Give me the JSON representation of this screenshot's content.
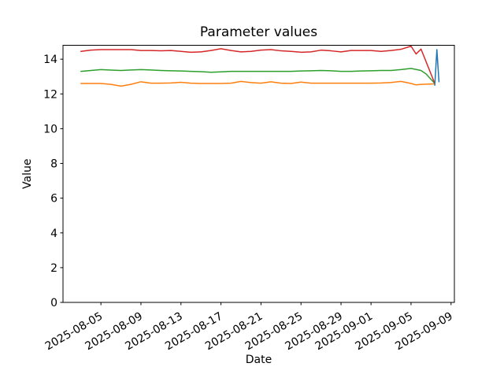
{
  "chart_data": {
    "type": "line",
    "title": "Parameter values",
    "xlabel": "Date",
    "ylabel": "Value",
    "grid": false,
    "legend": "none",
    "background_color": "#ffffff",
    "spine_color": "#000000",
    "ylim": [
      0,
      14.8
    ],
    "y_ticks": [
      0,
      2,
      4,
      6,
      8,
      10,
      12,
      14
    ],
    "xlim": [
      "2025-08-01T05:00",
      "2025-09-09T08:00"
    ],
    "x_tick_labels": [
      "2025-08-05",
      "2025-08-09",
      "2025-08-13",
      "2025-08-17",
      "2025-08-21",
      "2025-08-25",
      "2025-08-29",
      "2025-09-01",
      "2025-09-05",
      "2025-09-09"
    ],
    "series": [
      {
        "name": "orange-line",
        "color": "#ff7f0e",
        "points": [
          [
            "2025-08-03",
            12.6
          ],
          [
            "2025-08-04",
            12.6
          ],
          [
            "2025-08-05",
            12.6
          ],
          [
            "2025-08-06",
            12.55
          ],
          [
            "2025-08-07",
            12.45
          ],
          [
            "2025-08-08",
            12.55
          ],
          [
            "2025-08-09",
            12.7
          ],
          [
            "2025-08-10",
            12.62
          ],
          [
            "2025-08-11",
            12.62
          ],
          [
            "2025-08-12",
            12.63
          ],
          [
            "2025-08-13",
            12.67
          ],
          [
            "2025-08-14",
            12.62
          ],
          [
            "2025-08-15",
            12.6
          ],
          [
            "2025-08-16",
            12.6
          ],
          [
            "2025-08-17",
            12.6
          ],
          [
            "2025-08-18",
            12.62
          ],
          [
            "2025-08-19",
            12.72
          ],
          [
            "2025-08-20",
            12.65
          ],
          [
            "2025-08-21",
            12.62
          ],
          [
            "2025-08-22",
            12.7
          ],
          [
            "2025-08-23",
            12.62
          ],
          [
            "2025-08-24",
            12.6
          ],
          [
            "2025-08-25",
            12.68
          ],
          [
            "2025-08-26",
            12.62
          ],
          [
            "2025-08-27",
            12.62
          ],
          [
            "2025-08-28",
            12.62
          ],
          [
            "2025-08-29",
            12.62
          ],
          [
            "2025-08-30",
            12.62
          ],
          [
            "2025-08-31",
            12.62
          ],
          [
            "2025-09-01",
            12.62
          ],
          [
            "2025-09-02",
            12.63
          ],
          [
            "2025-09-03",
            12.66
          ],
          [
            "2025-09-04",
            12.72
          ],
          [
            "2025-09-05",
            12.6
          ],
          [
            "2025-09-05T12:00",
            12.52
          ],
          [
            "2025-09-06",
            12.55
          ],
          [
            "2025-09-07T09:00",
            12.58
          ]
        ]
      },
      {
        "name": "green-line",
        "color": "#2ca02c",
        "points": [
          [
            "2025-08-03",
            13.3
          ],
          [
            "2025-08-04",
            13.35
          ],
          [
            "2025-08-05",
            13.4
          ],
          [
            "2025-08-06",
            13.37
          ],
          [
            "2025-08-07",
            13.35
          ],
          [
            "2025-08-08",
            13.38
          ],
          [
            "2025-08-09",
            13.4
          ],
          [
            "2025-08-10",
            13.38
          ],
          [
            "2025-08-11",
            13.35
          ],
          [
            "2025-08-12",
            13.33
          ],
          [
            "2025-08-13",
            13.32
          ],
          [
            "2025-08-14",
            13.3
          ],
          [
            "2025-08-15",
            13.28
          ],
          [
            "2025-08-16",
            13.25
          ],
          [
            "2025-08-17",
            13.27
          ],
          [
            "2025-08-18",
            13.3
          ],
          [
            "2025-08-19",
            13.3
          ],
          [
            "2025-08-20",
            13.3
          ],
          [
            "2025-08-21",
            13.3
          ],
          [
            "2025-08-22",
            13.3
          ],
          [
            "2025-08-23",
            13.3
          ],
          [
            "2025-08-24",
            13.3
          ],
          [
            "2025-08-25",
            13.32
          ],
          [
            "2025-08-26",
            13.33
          ],
          [
            "2025-08-27",
            13.35
          ],
          [
            "2025-08-28",
            13.33
          ],
          [
            "2025-08-29",
            13.3
          ],
          [
            "2025-08-30",
            13.3
          ],
          [
            "2025-08-31",
            13.32
          ],
          [
            "2025-09-01",
            13.33
          ],
          [
            "2025-09-02",
            13.35
          ],
          [
            "2025-09-03",
            13.35
          ],
          [
            "2025-09-04",
            13.4
          ],
          [
            "2025-09-05",
            13.47
          ],
          [
            "2025-09-06",
            13.35
          ],
          [
            "2025-09-06T12:00",
            13.15
          ],
          [
            "2025-09-07T09:00",
            12.6
          ]
        ]
      },
      {
        "name": "red-line",
        "color": "#d62728",
        "points": [
          [
            "2025-08-03",
            14.45
          ],
          [
            "2025-08-04",
            14.52
          ],
          [
            "2025-08-05",
            14.55
          ],
          [
            "2025-08-06",
            14.55
          ],
          [
            "2025-08-07",
            14.55
          ],
          [
            "2025-08-08",
            14.55
          ],
          [
            "2025-08-09",
            14.5
          ],
          [
            "2025-08-10",
            14.5
          ],
          [
            "2025-08-11",
            14.48
          ],
          [
            "2025-08-12",
            14.5
          ],
          [
            "2025-08-13",
            14.45
          ],
          [
            "2025-08-14",
            14.4
          ],
          [
            "2025-08-15",
            14.42
          ],
          [
            "2025-08-16",
            14.5
          ],
          [
            "2025-08-17",
            14.6
          ],
          [
            "2025-08-18",
            14.5
          ],
          [
            "2025-08-19",
            14.42
          ],
          [
            "2025-08-20",
            14.45
          ],
          [
            "2025-08-21",
            14.52
          ],
          [
            "2025-08-22",
            14.55
          ],
          [
            "2025-08-23",
            14.48
          ],
          [
            "2025-08-24",
            14.45
          ],
          [
            "2025-08-25",
            14.4
          ],
          [
            "2025-08-26",
            14.42
          ],
          [
            "2025-08-27",
            14.52
          ],
          [
            "2025-08-28",
            14.48
          ],
          [
            "2025-08-29",
            14.42
          ],
          [
            "2025-08-30",
            14.5
          ],
          [
            "2025-08-31",
            14.5
          ],
          [
            "2025-09-01",
            14.5
          ],
          [
            "2025-09-02",
            14.45
          ],
          [
            "2025-09-03",
            14.5
          ],
          [
            "2025-09-04",
            14.57
          ],
          [
            "2025-09-05",
            14.75
          ],
          [
            "2025-09-05T12:00",
            14.3
          ],
          [
            "2025-09-06",
            14.58
          ],
          [
            "2025-09-07T09:00",
            12.6
          ]
        ]
      },
      {
        "name": "blue-line",
        "color": "#1f77b4",
        "points": [
          [
            "2025-09-07T09:00",
            12.5
          ],
          [
            "2025-09-07T14:00",
            14.55
          ],
          [
            "2025-09-07T19:00",
            12.7
          ]
        ]
      }
    ]
  }
}
